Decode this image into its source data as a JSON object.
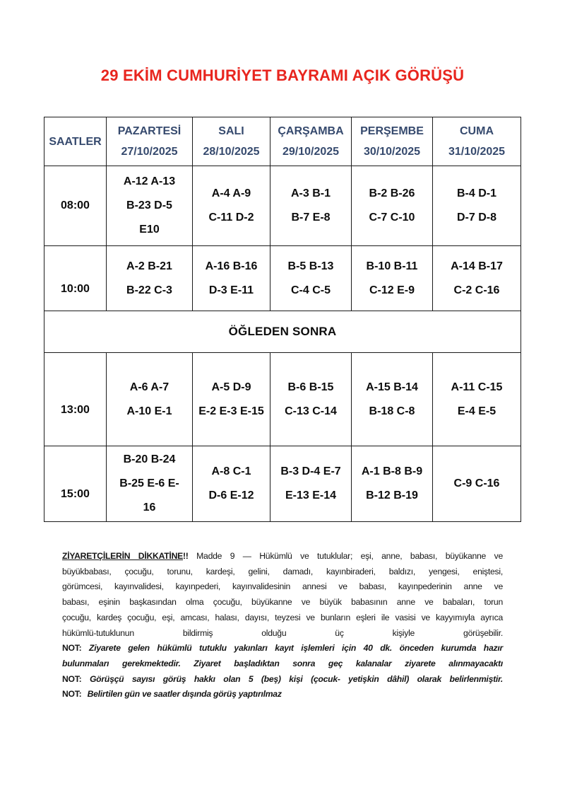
{
  "page": {
    "title": "29 EKİM CUMHURİYET BAYRAMI AÇIK GÖRÜŞÜ"
  },
  "colors": {
    "title_red": "#e8251e",
    "header_navy": "#364a6e",
    "table_border": "#1b1b1b",
    "body_text": "#151515"
  },
  "table": {
    "header": {
      "saatler": "SAATLER",
      "days": [
        {
          "day": "PAZARTESİ",
          "date": "27/10/2025"
        },
        {
          "day": "SALI",
          "date": "28/10/2025"
        },
        {
          "day": "ÇARŞAMBA",
          "date": "29/10/2025"
        },
        {
          "day": "PERŞEMBE",
          "date": "30/10/2025"
        },
        {
          "day": "CUMA",
          "date": "31/10/2025"
        }
      ]
    },
    "morning_rows": [
      {
        "time": "08:00",
        "cells": [
          "A-12 A-13\nB-23 D-5\nE10",
          "A-4 A-9\nC-11 D-2",
          "A-3 B-1\nB-7 E-8",
          "B-2 B-26\nC-7 C-10",
          "B-4 D-1\nD-7 D-8"
        ]
      },
      {
        "time": "10:00",
        "cells": [
          "A-2 B-21\nB-22 C-3",
          "A-16 B-16\nD-3 E-11",
          "B-5 B-13\nC-4 C-5",
          "B-10 B-11\nC-12 E-9",
          "A-14 B-17\nC-2 C-16"
        ]
      }
    ],
    "divider": "ÖĞLEDEN SONRA",
    "afternoon_rows": [
      {
        "time": "13:00",
        "cells": [
          "A-6 A-7\nA-10 E-1",
          "A-5 D-9\nE-2 E-3 E-15",
          "B-6 B-15\nC-13 C-14",
          "A-15 B-14\nB-18 C-8",
          "A-11 C-15\nE-4 E-5"
        ]
      },
      {
        "time": "15:00",
        "cells": [
          "B-20 B-24\nB-25 E-6 E-\n16",
          "A-8 C-1\nD-6 E-12",
          "B-3 D-4 E-7\nE-13 E-14",
          "A-1 B-8 B-9\nB-12 B-19",
          "C-9 C-16"
        ]
      }
    ]
  },
  "notice": {
    "heading": "ZİYARETÇİLERİN DİKKATİNE",
    "heading_bang": "!!",
    "line1_rest": " Madde 9 — Hükümlü ve tutuklular; eşi, anne, babası, büyükanne ve",
    "line2": "büyükbabası, çocuğu, torunu, kardeşi, gelini, damadı, kayınbiraderi, baldızı, yengesi, eniştesi,",
    "line3": "görümcesi, kayınvalidesi, kayınpederi, kayınvalidesinin annesi ve babası, kayınpederinin anne ve",
    "line4": "babası, eşinin başkasından olma çocuğu, büyükanne ve büyük babasının anne ve babaları, torun",
    "line5": "çocuğu, kardeş çocuğu, eşi, amcası, halası, dayısı, teyzesi ve bunların eşleri ile vasisi ve kayyımıyla ayrıca",
    "line6": "hükümlü-tutuklunun bildirmiş olduğu üç kişiyle görüşebilir.",
    "not_label": "NOT:",
    "not1_line1": "Ziyarete gelen hükümlü tutuklu yakınları kayıt işlemleri için 40 dk. önceden kurumda hazır",
    "not1_line2": "bulunmaları gerekmektedir. Ziyaret başladıktan sonra geç kalanalar ziyarete alınmayacaktı",
    "not2": "Görüşçü sayısı görüş hakkı olan 5 (beş) kişi (çocuk- yetişkin dâhil) olarak belirlenmiştir.",
    "not3": "Belirtilen gün ve saatler dışında görüş yaptırılmaz"
  }
}
